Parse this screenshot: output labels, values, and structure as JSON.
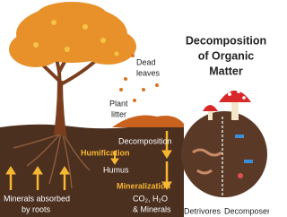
{
  "title": [
    "Decomposition",
    "of Organic",
    "Matter"
  ],
  "labels": {
    "dead_leaves": [
      "Dead",
      "leaves"
    ],
    "plant_litter": [
      "Plant",
      "litter"
    ],
    "decomposition": "Decomposition",
    "humification": "Humification",
    "humus": "Humus",
    "mineralization": "Mineralization",
    "products": [
      "CO₂, H₂O",
      "& Minerals"
    ],
    "minerals_absorbed": [
      "Minerals absorbed",
      "by roots"
    ],
    "detrivores": "Detrivores",
    "decomposers": "Decomposers"
  }
}
